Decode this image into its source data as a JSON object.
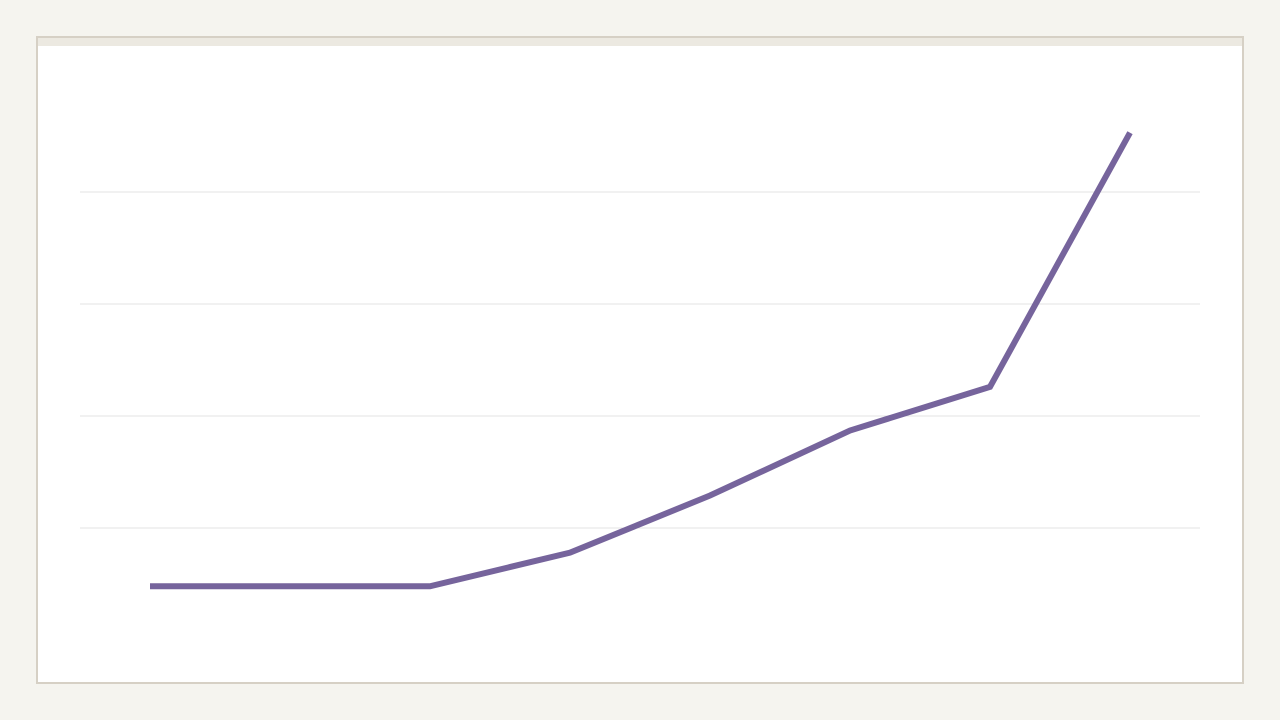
{
  "chart_data": {
    "type": "line",
    "categories": [
      null,
      null,
      null,
      null,
      null,
      null,
      null,
      null
    ],
    "series": [
      {
        "color": "#76649c",
        "values": [
          0.48,
          0.48,
          0.48,
          0.78,
          1.29,
          1.87,
          2.26,
          4.53
        ]
      }
    ],
    "ylim": [
      0,
      5
    ],
    "yticks": [
      1,
      2,
      3,
      4
    ],
    "grid": true
  }
}
